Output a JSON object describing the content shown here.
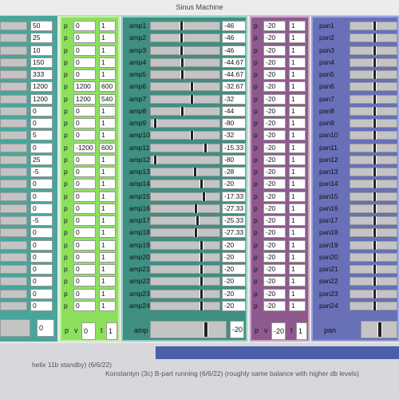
{
  "window": {
    "title": "Sinus Machine"
  },
  "colors": {
    "panel1": "#49a59a",
    "panel2": "#8ce05e",
    "panel3": "#3f8f82",
    "panel4": "#8e5a8e",
    "panel5": "#6870b8"
  },
  "panel1": {
    "values": [
      "50",
      "25",
      "10",
      "150",
      "333",
      "1200",
      "1200",
      "0",
      "0",
      "5",
      "0",
      "25",
      "-5",
      "0",
      "0",
      "0",
      "-5",
      "0",
      "0",
      "0",
      "0",
      "0",
      "0",
      "0"
    ],
    "footer_value": "0"
  },
  "panel2": {
    "rows": [
      {
        "p": "p",
        "a": "0",
        "b": "1"
      },
      {
        "p": "p",
        "a": "0",
        "b": "1"
      },
      {
        "p": "p",
        "a": "0",
        "b": "1"
      },
      {
        "p": "p",
        "a": "0",
        "b": "1"
      },
      {
        "p": "p",
        "a": "0",
        "b": "1"
      },
      {
        "p": "p",
        "a": "1200",
        "b": "600"
      },
      {
        "p": "p",
        "a": "1200",
        "b": "540"
      },
      {
        "p": "p",
        "a": "0",
        "b": "1"
      },
      {
        "p": "p",
        "a": "0",
        "b": "1"
      },
      {
        "p": "p",
        "a": "0",
        "b": "1"
      },
      {
        "p": "p",
        "a": "-1200",
        "b": "600"
      },
      {
        "p": "p",
        "a": "0",
        "b": "1"
      },
      {
        "p": "p",
        "a": "0",
        "b": "1"
      },
      {
        "p": "p",
        "a": "0",
        "b": "1"
      },
      {
        "p": "p",
        "a": "0",
        "b": "1"
      },
      {
        "p": "p",
        "a": "0",
        "b": "1"
      },
      {
        "p": "p",
        "a": "0",
        "b": "1"
      },
      {
        "p": "p",
        "a": "0",
        "b": "1"
      },
      {
        "p": "p",
        "a": "0",
        "b": "1"
      },
      {
        "p": "p",
        "a": "0",
        "b": "1"
      },
      {
        "p": "p",
        "a": "0",
        "b": "1"
      },
      {
        "p": "p",
        "a": "0",
        "b": "1"
      },
      {
        "p": "p",
        "a": "0",
        "b": "1"
      },
      {
        "p": "p",
        "a": "0",
        "b": "1"
      }
    ],
    "footer": {
      "p": "p",
      "v": "v",
      "v_value": "0",
      "t": "t",
      "t_value": "1"
    }
  },
  "amp": {
    "rows": [
      {
        "label": "amp1",
        "value": "-46",
        "level": 0.44
      },
      {
        "label": "amp2",
        "value": "-46",
        "level": 0.44
      },
      {
        "label": "amp3",
        "value": "-46",
        "level": 0.44
      },
      {
        "label": "amp4",
        "value": "-44.67",
        "level": 0.45
      },
      {
        "label": "amp5",
        "value": "-44.67",
        "level": 0.45
      },
      {
        "label": "amp6",
        "value": "-32.67",
        "level": 0.6
      },
      {
        "label": "amp7",
        "value": "-32",
        "level": 0.6
      },
      {
        "label": "amp8",
        "value": "-44",
        "level": 0.45
      },
      {
        "label": "amp9",
        "value": "-80",
        "level": 0.04
      },
      {
        "label": "amp10",
        "value": "-32",
        "level": 0.6
      },
      {
        "label": "amp11",
        "value": "-15.33",
        "level": 0.8
      },
      {
        "label": "amp12",
        "value": "-80",
        "level": 0.04
      },
      {
        "label": "amp13",
        "value": "-28",
        "level": 0.65
      },
      {
        "label": "amp14",
        "value": "-20",
        "level": 0.74
      },
      {
        "label": "amp15",
        "value": "-17.33",
        "level": 0.78
      },
      {
        "label": "amp16",
        "value": "-27.33",
        "level": 0.66
      },
      {
        "label": "amp17",
        "value": "-25.33",
        "level": 0.68
      },
      {
        "label": "amp18",
        "value": "-27.33",
        "level": 0.66
      },
      {
        "label": "amp19",
        "value": "-20",
        "level": 0.74
      },
      {
        "label": "amp20",
        "value": "-20",
        "level": 0.74
      },
      {
        "label": "amp21",
        "value": "-20",
        "level": 0.74
      },
      {
        "label": "amp22",
        "value": "-20",
        "level": 0.74
      },
      {
        "label": "amp23",
        "value": "-20",
        "level": 0.74
      },
      {
        "label": "amp24",
        "value": "-20",
        "level": 0.74
      }
    ],
    "footer": {
      "label": "amp",
      "value": "-20",
      "level": 0.75
    }
  },
  "panel4": {
    "rows": [
      {
        "p": "p",
        "a": "-20",
        "b": "1"
      },
      {
        "p": "p",
        "a": "-20",
        "b": "1"
      },
      {
        "p": "p",
        "a": "-20",
        "b": "1"
      },
      {
        "p": "p",
        "a": "-20",
        "b": "1"
      },
      {
        "p": "p",
        "a": "-20",
        "b": "1"
      },
      {
        "p": "p",
        "a": "-20",
        "b": "1"
      },
      {
        "p": "p",
        "a": "-20",
        "b": "1"
      },
      {
        "p": "p",
        "a": "-20",
        "b": "1"
      },
      {
        "p": "p",
        "a": "-20",
        "b": "1"
      },
      {
        "p": "p",
        "a": "-20",
        "b": "1"
      },
      {
        "p": "p",
        "a": "-20",
        "b": "1"
      },
      {
        "p": "p",
        "a": "-20",
        "b": "1"
      },
      {
        "p": "p",
        "a": "-20",
        "b": "1"
      },
      {
        "p": "p",
        "a": "-20",
        "b": "1"
      },
      {
        "p": "p",
        "a": "-20",
        "b": "1"
      },
      {
        "p": "p",
        "a": "-20",
        "b": "1"
      },
      {
        "p": "p",
        "a": "-20",
        "b": "1"
      },
      {
        "p": "p",
        "a": "-20",
        "b": "1"
      },
      {
        "p": "p",
        "a": "-20",
        "b": "1"
      },
      {
        "p": "p",
        "a": "-20",
        "b": "1"
      },
      {
        "p": "p",
        "a": "-20",
        "b": "1"
      },
      {
        "p": "p",
        "a": "-20",
        "b": "1"
      },
      {
        "p": "p",
        "a": "-20",
        "b": "1"
      },
      {
        "p": "p",
        "a": "-20",
        "b": "1"
      }
    ],
    "footer": {
      "p": "p",
      "v": "v",
      "v_value": "-20",
      "t": "t",
      "t_value": "1"
    }
  },
  "pan": {
    "rows": [
      "pan1",
      "pan2",
      "pan3",
      "pan4",
      "pan5",
      "pan6",
      "pan7",
      "pan8",
      "pan9",
      "pan10",
      "pan11",
      "pan12",
      "pan13",
      "pan14",
      "pan15",
      "pan16",
      "pan17",
      "pan18",
      "pan19",
      "pan20",
      "pan21",
      "pan22",
      "pan23",
      "pan24"
    ],
    "footer_label": "pan"
  },
  "status": {
    "line1": "helix 11b standby) (6/6/22)",
    "line2": "Konstantyn (3c) B-part running (6/6/22) (roughly same balance with higher db levels)"
  }
}
